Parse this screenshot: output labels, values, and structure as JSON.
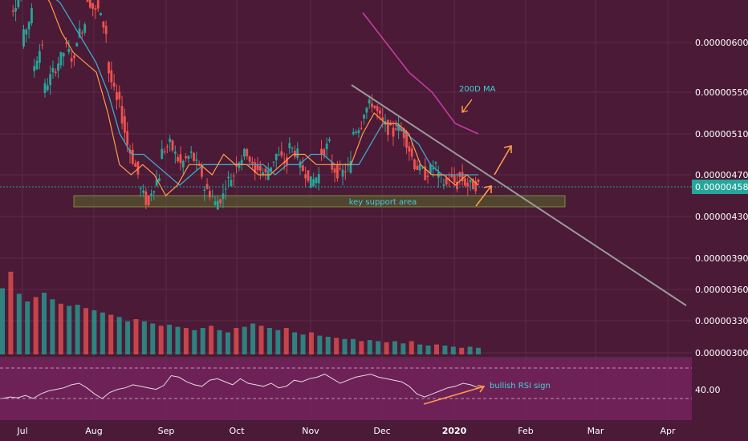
{
  "chart_data": {
    "type": "candlestick",
    "title": "",
    "price_axis": {
      "ticks": [
        6e-06,
        5.5e-06,
        5.1e-06,
        4.7e-06,
        4.3e-06,
        3.9e-06,
        3.6e-06,
        3.3e-06,
        3e-06
      ],
      "tick_labels": [
        "0.00000600",
        "0.00000550",
        "0.00000510",
        "0.00000470",
        "0.00000430",
        "0.00000390",
        "0.00000360",
        "0.00000330",
        "0.00000300"
      ],
      "last_price": 4.58e-06,
      "last_price_label": "0.00000458"
    },
    "rsi_axis": {
      "tick_value": 40,
      "tick_label": "40.00"
    },
    "time_axis": {
      "labels": [
        "Jul",
        "Aug",
        "Sep",
        "Oct",
        "Nov",
        "Dec",
        "2020",
        "Feb",
        "Mar",
        "Apr"
      ]
    },
    "price_path": [
      [
        6.5e-06,
        6.6e-06
      ],
      [
        6.3e-06,
        6.5e-06
      ],
      [
        6e-06,
        6.3e-06
      ],
      [
        5.7e-06,
        6e-06
      ],
      [
        5.5e-06,
        5.7e-06
      ],
      [
        5.7e-06,
        5.9e-06
      ],
      [
        6e-06,
        5.8e-06
      ],
      [
        6e-06,
        6.2e-06
      ],
      [
        6.5e-06,
        6.3e-06
      ],
      [
        6.4e-06,
        6.1e-06
      ],
      [
        5.8e-06,
        5.4e-06
      ],
      [
        5.5e-06,
        5e-06
      ],
      [
        5e-06,
        4.7e-06
      ],
      [
        4.6e-06,
        4.4e-06
      ],
      [
        4.5e-06,
        4.7e-06
      ],
      [
        4.9e-06,
        5e-06
      ],
      [
        5e-06,
        4.8e-06
      ],
      [
        4.8e-06,
        4.9e-06
      ],
      [
        4.9e-06,
        4.7e-06
      ],
      [
        4.6e-06,
        4.5e-06
      ],
      [
        4.4e-06,
        4.5e-06
      ],
      [
        4.6e-06,
        4.7e-06
      ],
      [
        4.8e-06,
        4.9e-06
      ],
      [
        5e-06,
        4.7e-06
      ],
      [
        4.8e-06,
        4.7e-06
      ],
      [
        4.7e-06,
        4.9e-06
      ],
      [
        4.9e-06,
        4.8e-06
      ],
      [
        5e-06,
        4.9e-06
      ],
      [
        4.8e-06,
        4.7e-06
      ],
      [
        4.6e-06,
        4.7e-06
      ],
      [
        4.9e-06,
        5e-06
      ],
      [
        4.8e-06,
        4.7e-06
      ],
      [
        4.7e-06,
        4.8e-06
      ],
      [
        5.1e-06,
        5.2e-06
      ],
      [
        5.3e-06,
        5.4e-06
      ],
      [
        5.4e-06,
        5.2e-06
      ],
      [
        5.2e-06,
        5.1e-06
      ],
      [
        5.2e-06,
        5.1e-06
      ],
      [
        5.1e-06,
        4.8e-06
      ],
      [
        4.8e-06,
        4.7e-06
      ],
      [
        4.7e-06,
        4.8e-06
      ],
      [
        4.7e-06,
        4.6e-06
      ],
      [
        4.7e-06,
        4.6e-06
      ],
      [
        4.7e-06,
        4.6e-06
      ],
      [
        4.6e-06,
        4.6e-06
      ]
    ],
    "ma_fast": [
      6.6e-06,
      6.4e-06,
      6.1e-06,
      5.9e-06,
      5.8e-06,
      5.7e-06,
      5.3e-06,
      4.8e-06,
      4.7e-06,
      4.8e-06,
      4.7e-06,
      4.5e-06,
      4.6e-06,
      4.8e-06,
      4.8e-06,
      4.7e-06,
      4.9e-06,
      4.8e-06,
      4.8e-06,
      4.7e-06,
      4.7e-06,
      4.8e-06,
      4.9e-06,
      4.9e-06,
      4.8e-06,
      4.8e-06,
      4.8e-06,
      4.8e-06,
      5.1e-06,
      5.3e-06,
      5.2e-06,
      5.2e-06,
      5.1e-06,
      4.8e-06,
      4.7e-06,
      4.7e-06,
      4.6e-06,
      4.7e-06,
      4.6e-06
    ],
    "ma_slow": [
      6.5e-06,
      6.4e-06,
      6.2e-06,
      6e-06,
      5.8e-06,
      5.5e-06,
      5.1e-06,
      4.9e-06,
      4.9e-06,
      4.8e-06,
      4.7e-06,
      4.6e-06,
      4.7e-06,
      4.8e-06,
      4.8e-06,
      4.8e-06,
      4.8e-06,
      4.8e-06,
      4.8e-06,
      4.7e-06,
      4.8e-06,
      4.8e-06,
      4.9e-06,
      4.9e-06,
      4.8e-06,
      4.8e-06,
      4.8e-06,
      5e-06,
      5.2e-06,
      5.2e-06,
      5.1e-06,
      5e-06,
      4.8e-06,
      4.7e-06,
      4.7e-06,
      4.7e-06,
      4.7e-06
    ],
    "ma_200d": [
      6.3e-06,
      6e-06,
      5.7e-06,
      5.5e-06,
      5.2e-06,
      5.1e-06
    ],
    "rsi": [
      30,
      32,
      31,
      34,
      30,
      36,
      40,
      42,
      44,
      48,
      50,
      44,
      36,
      30,
      38,
      42,
      44,
      48,
      46,
      44,
      42,
      47,
      60,
      58,
      52,
      48,
      46,
      54,
      56,
      52,
      48,
      56,
      50,
      48,
      46,
      50,
      44,
      46,
      54,
      52,
      56,
      58,
      62,
      56,
      50,
      54,
      58,
      60,
      62,
      58,
      56,
      54,
      52,
      46,
      36,
      32,
      36,
      40,
      44,
      46,
      50,
      48,
      44
    ],
    "volume": [
      60,
      75,
      55,
      48,
      52,
      56,
      50,
      46,
      44,
      45,
      42,
      40,
      38,
      36,
      34,
      30,
      32,
      30,
      28,
      26,
      27,
      25,
      24,
      22,
      24,
      26,
      22,
      20,
      24,
      25,
      28,
      26,
      24,
      22,
      24,
      20,
      18,
      20,
      17,
      16,
      15,
      14,
      14,
      12,
      13,
      12,
      11,
      12,
      10,
      12,
      9,
      8,
      9,
      8,
      7,
      6,
      7,
      6
    ],
    "annotations": {
      "ma200_label": "200D MA",
      "support_label": "key support area",
      "rsi_label": "bullish RSI sign"
    },
    "colors": {
      "background": "#4a1a36",
      "rsi_panel": "#7b2463",
      "up": "#26a69a",
      "down": "#ef5350",
      "ma_fast": "#ff9b4a",
      "ma_slow": "#3fa8c8",
      "ma_200d": "#c83aa8",
      "trendline": "#9a9a9a",
      "support_fill": "#5a6a2c",
      "annotation_arrow": "#ff9b4a",
      "annotation_text": "#3fd0d8",
      "last_price_tag": "#26a69a"
    }
  }
}
